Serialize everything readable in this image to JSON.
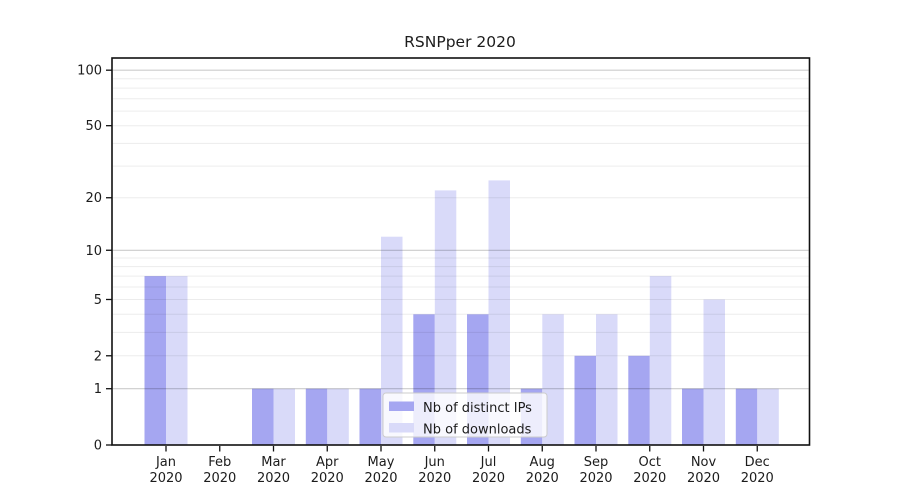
{
  "chart_data": {
    "type": "bar",
    "title": "RSNPper 2020",
    "months": [
      "Jan",
      "Feb",
      "Mar",
      "Apr",
      "May",
      "Jun",
      "Jul",
      "Aug",
      "Sep",
      "Oct",
      "Nov",
      "Dec"
    ],
    "year_label": "2020",
    "categories": [
      "Jan 2020",
      "Feb 2020",
      "Mar 2020",
      "Apr 2020",
      "May 2020",
      "Jun 2020",
      "Jul 2020",
      "Aug 2020",
      "Sep 2020",
      "Oct 2020",
      "Nov 2020",
      "Dec 2020"
    ],
    "series": [
      {
        "name": "Nb of distinct IPs",
        "color": "#a5a6f1",
        "values": [
          7,
          0,
          1,
          1,
          1,
          4,
          4,
          1,
          2,
          2,
          1,
          1
        ]
      },
      {
        "name": "Nb of downloads",
        "color": "#d9daf9",
        "values": [
          7,
          0,
          1,
          1,
          12,
          22,
          25,
          4,
          4,
          7,
          5,
          1
        ]
      }
    ],
    "y_axis": {
      "scale": "log10(1+value), linear point at 0",
      "tick_values": [
        0,
        1,
        2,
        5,
        10,
        20,
        50,
        100
      ],
      "tick_labels": [
        "0",
        "1",
        "2",
        "5",
        "10",
        "20",
        "50",
        "100"
      ],
      "minor_gridlines": [
        2,
        3,
        4,
        5,
        6,
        7,
        8,
        9,
        20,
        30,
        40,
        50,
        60,
        70,
        80,
        90
      ],
      "major_gridlines": [
        1,
        10,
        100
      ],
      "range": [
        0,
        115
      ]
    },
    "x_axis": {
      "label": "",
      "tick_style": "two-line month + year"
    },
    "legend": {
      "position": "inside lower-center",
      "entries": [
        "Nb of distinct IPs",
        "Nb of downloads"
      ]
    },
    "grid": "horizontal only"
  },
  "colors": {
    "bar_distinct_ips": "#a5a6f1",
    "bar_downloads": "#d9daf9",
    "grid_minor": "#ebebeb",
    "grid_major": "#cccccc",
    "spine": "#111111",
    "text": "#1c1c1c",
    "legend_border": "#cccccc",
    "background": "#ffffff"
  }
}
